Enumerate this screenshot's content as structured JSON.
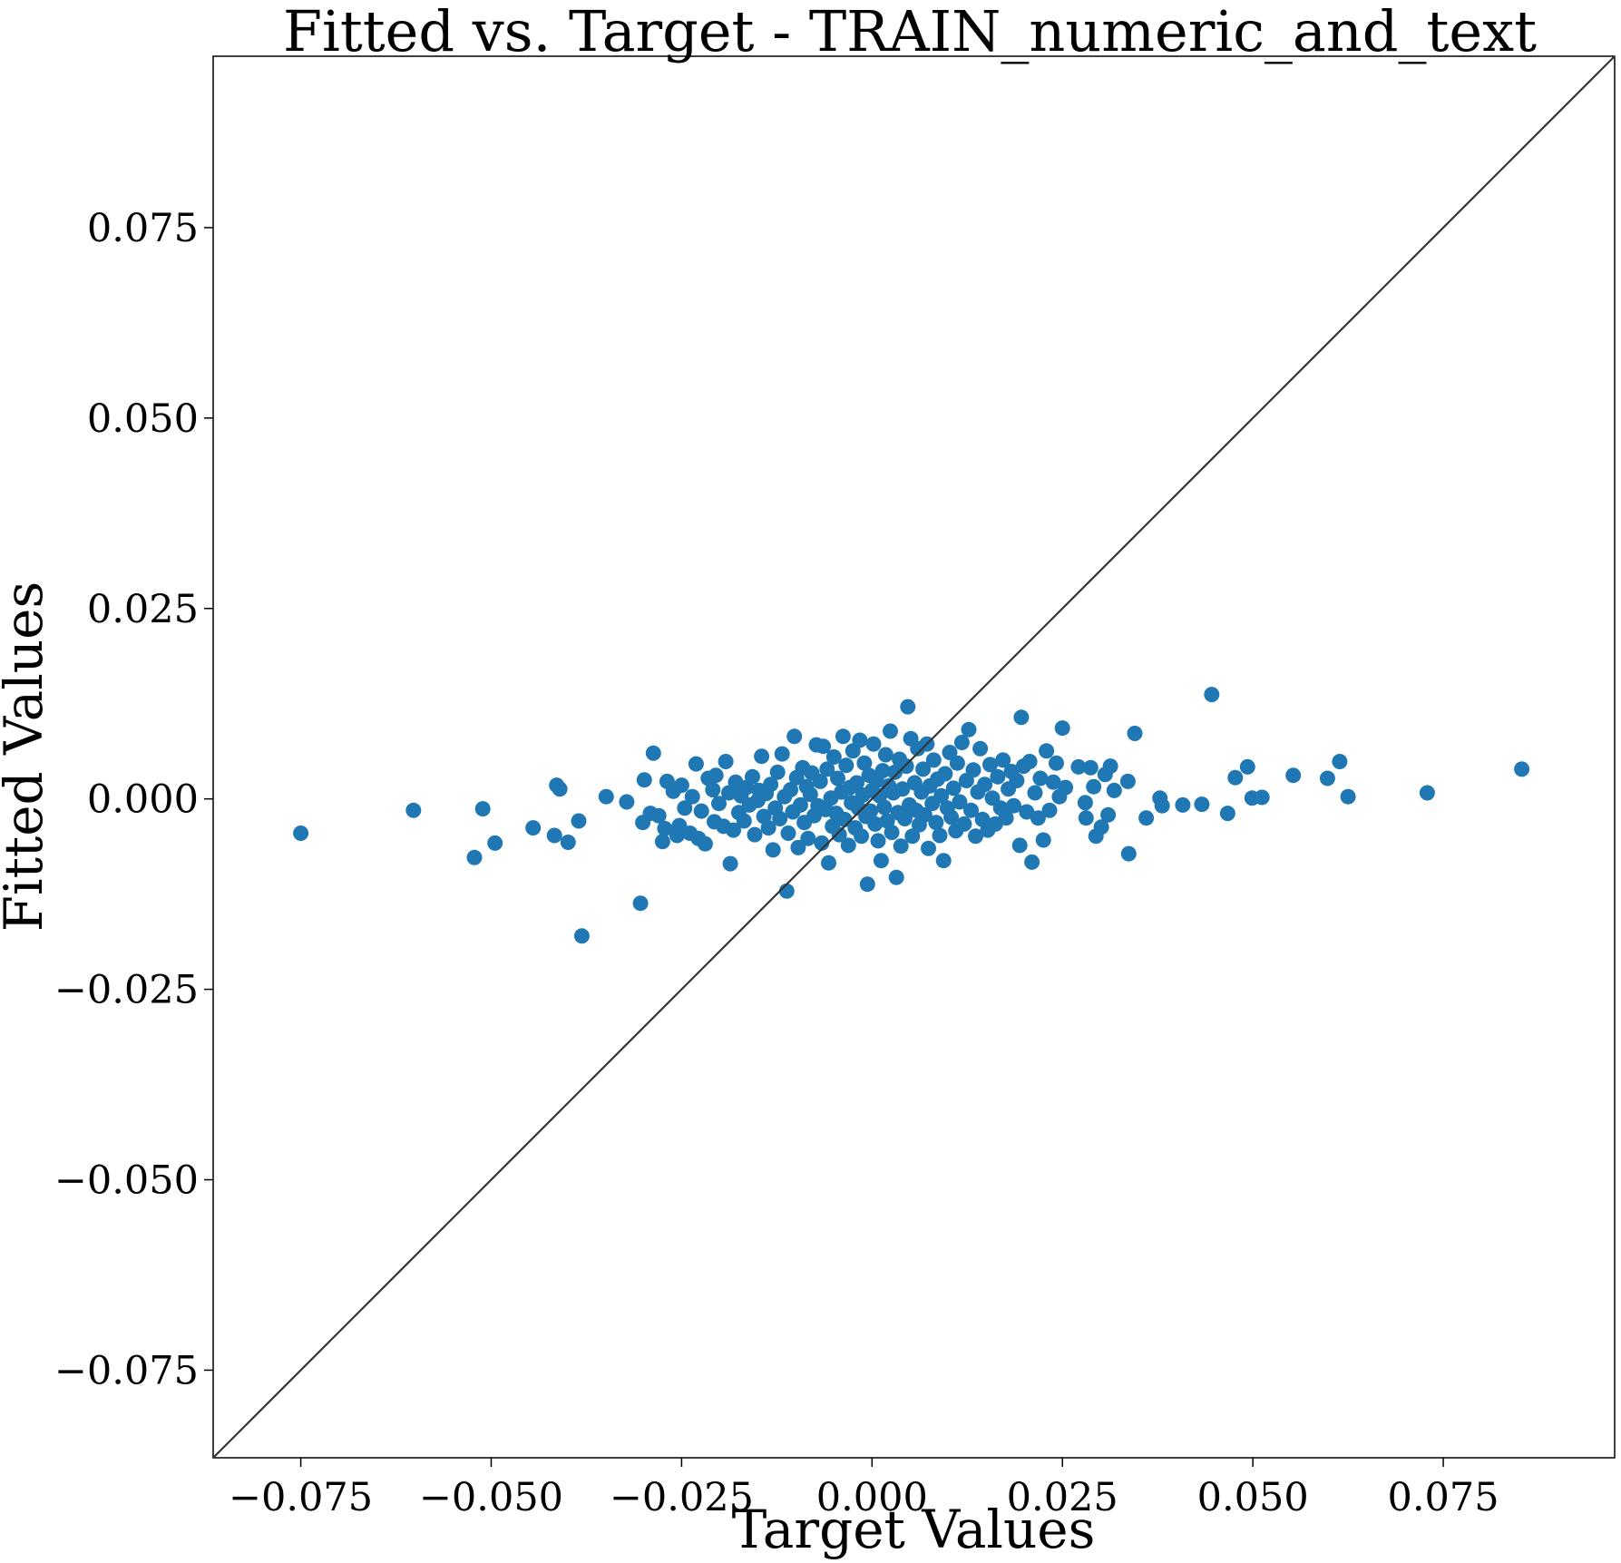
{
  "chart_data": {
    "type": "scatter",
    "title": "Fitted vs. Target - TRAIN_numeric_and_text",
    "xlabel": "Target Values",
    "ylabel": "Fitted Values",
    "xlim": [
      -0.0865,
      0.0975
    ],
    "ylim": [
      -0.0865,
      0.0975
    ],
    "xticks": [
      -0.075,
      -0.05,
      -0.025,
      0.0,
      0.025,
      0.05,
      0.075
    ],
    "yticks": [
      -0.075,
      -0.05,
      -0.025,
      0.0,
      0.025,
      0.05,
      0.075
    ],
    "xtick_labels": [
      "−0.075",
      "−0.050",
      "−0.025",
      "0.000",
      "0.025",
      "0.050",
      "0.075"
    ],
    "ytick_labels": [
      "−0.075",
      "−0.050",
      "−0.025",
      "0.000",
      "0.025",
      "0.050",
      "0.075"
    ],
    "grid": false,
    "reference_line": "y = x",
    "colors": {
      "points": "#1f77b4",
      "line": "#333333"
    },
    "points": [
      [
        -0.075,
        -0.0045
      ],
      [
        -0.0602,
        -0.0015
      ],
      [
        -0.0511,
        -0.0013
      ],
      [
        -0.0522,
        -0.0077
      ],
      [
        -0.0495,
        -0.0058
      ],
      [
        -0.0445,
        -0.0038
      ],
      [
        -0.0417,
        -0.0048
      ],
      [
        -0.0414,
        0.0018
      ],
      [
        -0.041,
        0.0013
      ],
      [
        -0.0399,
        -0.0057
      ],
      [
        -0.0385,
        -0.0029
      ],
      [
        -0.0381,
        -0.018
      ],
      [
        -0.0349,
        0.0003
      ],
      [
        -0.0322,
        -0.0004
      ],
      [
        -0.0304,
        -0.0137
      ],
      [
        -0.0301,
        -0.0031
      ],
      [
        -0.0299,
        0.0025
      ],
      [
        -0.0291,
        -0.0019
      ],
      [
        -0.0287,
        0.006
      ],
      [
        -0.028,
        -0.0022
      ],
      [
        -0.0275,
        -0.0056
      ],
      [
        -0.0272,
        -0.0039
      ],
      [
        -0.0269,
        0.0023
      ],
      [
        -0.0261,
        0.001
      ],
      [
        -0.0256,
        -0.0048
      ],
      [
        -0.0253,
        -0.0035
      ],
      [
        -0.025,
        0.0018
      ],
      [
        -0.0246,
        -0.0012
      ],
      [
        -0.0239,
        -0.0045
      ],
      [
        -0.0236,
        0.0003
      ],
      [
        -0.0231,
        0.0046
      ],
      [
        -0.0228,
        -0.0052
      ],
      [
        -0.0224,
        -0.0016
      ],
      [
        -0.0219,
        -0.0059
      ],
      [
        -0.0215,
        0.0027
      ],
      [
        -0.0209,
        0.0012
      ],
      [
        -0.0207,
        -0.003
      ],
      [
        -0.0205,
        0.0031
      ],
      [
        -0.0201,
        -0.0006
      ],
      [
        -0.0195,
        -0.0036
      ],
      [
        -0.0192,
        0.0049
      ],
      [
        -0.0188,
        0.0008
      ],
      [
        -0.0186,
        -0.0085
      ],
      [
        -0.0182,
        -0.0041
      ],
      [
        -0.0179,
        0.0022
      ],
      [
        -0.0175,
        -0.0018
      ],
      [
        -0.0172,
        0.0004
      ],
      [
        -0.0168,
        -0.0029
      ],
      [
        -0.0165,
        0.0015
      ],
      [
        -0.0161,
        -0.0008
      ],
      [
        -0.0157,
        0.0029
      ],
      [
        -0.0154,
        -0.0047
      ],
      [
        -0.015,
        -0.0002
      ],
      [
        -0.0148,
        0.0011
      ],
      [
        -0.0145,
        0.0056
      ],
      [
        -0.0142,
        -0.0023
      ],
      [
        -0.0139,
        0.0007
      ],
      [
        -0.0136,
        -0.0038
      ],
      [
        -0.0133,
        0.0019
      ],
      [
        -0.013,
        -0.0067
      ],
      [
        -0.0127,
        -0.0012
      ],
      [
        -0.0124,
        0.0035
      ],
      [
        -0.0121,
        -0.0026
      ],
      [
        -0.0118,
        0.0059
      ],
      [
        -0.0115,
        0.0003
      ],
      [
        -0.0112,
        -0.0121
      ],
      [
        -0.011,
        -0.0045
      ],
      [
        -0.0107,
        0.0012
      ],
      [
        -0.0104,
        -0.0017
      ],
      [
        -0.0102,
        0.0082
      ],
      [
        -0.0099,
        0.0028
      ],
      [
        -0.0097,
        -0.0064
      ],
      [
        -0.0094,
        -0.0008
      ],
      [
        -0.0091,
        0.0041
      ],
      [
        -0.0089,
        -0.0031
      ],
      [
        -0.0086,
        0.0016
      ],
      [
        -0.0084,
        -0.0052
      ],
      [
        -0.0081,
        0.0006
      ],
      [
        -0.0079,
        0.0034
      ],
      [
        -0.0076,
        -0.0022
      ],
      [
        -0.0073,
        0.0071
      ],
      [
        -0.0071,
        -0.0009
      ],
      [
        -0.0068,
        0.0023
      ],
      [
        -0.0066,
        -0.0058
      ],
      [
        -0.0064,
        0.0069
      ],
      [
        -0.0061,
        -0.0014
      ],
      [
        -0.0059,
        0.0039
      ],
      [
        -0.0057,
        -0.0084
      ],
      [
        -0.0054,
        0.0001
      ],
      [
        -0.0052,
        -0.0036
      ],
      [
        -0.005,
        0.0055
      ],
      [
        -0.0047,
        -0.0019
      ],
      [
        -0.0045,
        0.0027
      ],
      [
        -0.0043,
        -0.0047
      ],
      [
        -0.004,
        0.0009
      ],
      [
        -0.0038,
        0.0082
      ],
      [
        -0.0036,
        -0.0027
      ],
      [
        -0.0034,
        0.0044
      ],
      [
        -0.0031,
        -0.0061
      ],
      [
        -0.0029,
        0.0015
      ],
      [
        -0.0027,
        -0.0005
      ],
      [
        -0.0025,
        0.0063
      ],
      [
        -0.0022,
        -0.0038
      ],
      [
        -0.002,
        0.0021
      ],
      [
        -0.0018,
        -0.0012
      ],
      [
        -0.0016,
        0.0077
      ],
      [
        -0.0014,
        -0.0049
      ],
      [
        -0.0012,
        0.0005
      ],
      [
        -0.001,
        0.0047
      ],
      [
        -0.0008,
        -0.0023
      ],
      [
        -0.0006,
        -0.0112
      ],
      [
        -0.0004,
        0.0031
      ],
      [
        -0.0002,
        -0.0016
      ],
      [
        0.0,
        0.0011
      ],
      [
        0.0002,
        0.0072
      ],
      [
        0.0004,
        -0.0033
      ],
      [
        0.0006,
        0.0024
      ],
      [
        0.0008,
        -0.0055
      ],
      [
        0.001,
        0.0004
      ],
      [
        0.0012,
        -0.0081
      ],
      [
        0.0014,
        0.0037
      ],
      [
        0.0016,
        -0.0011
      ],
      [
        0.0018,
        0.0058
      ],
      [
        0.002,
        -0.0029
      ],
      [
        0.0022,
        0.0017
      ],
      [
        0.0024,
        0.0089
      ],
      [
        0.0026,
        -0.0044
      ],
      [
        0.0028,
        0.0008
      ],
      [
        0.003,
        0.0035
      ],
      [
        0.0032,
        -0.0103
      ],
      [
        0.0034,
        -0.0018
      ],
      [
        0.0036,
        0.0052
      ],
      [
        0.0038,
        -0.0062
      ],
      [
        0.004,
        0.0013
      ],
      [
        0.0043,
        -0.0026
      ],
      [
        0.0045,
        0.0043
      ],
      [
        0.0047,
        0.0121
      ],
      [
        0.0049,
        -0.0008
      ],
      [
        0.0051,
        0.0079
      ],
      [
        0.0053,
        -0.0049
      ],
      [
        0.0056,
        0.0021
      ],
      [
        0.0058,
        -0.0015
      ],
      [
        0.006,
        0.0066
      ],
      [
        0.0062,
        -0.0034
      ],
      [
        0.0065,
        0.0009
      ],
      [
        0.0067,
        0.0039
      ],
      [
        0.0069,
        -0.0021
      ],
      [
        0.0072,
        0.0072
      ],
      [
        0.0074,
        -0.0065
      ],
      [
        0.0076,
        0.0017
      ],
      [
        0.0079,
        -0.0006
      ],
      [
        0.0081,
        0.0051
      ],
      [
        0.0084,
        -0.0031
      ],
      [
        0.0086,
        0.0026
      ],
      [
        0.0089,
        -0.0048
      ],
      [
        0.0091,
        0.0004
      ],
      [
        0.0094,
        -0.0081
      ],
      [
        0.0096,
        0.0033
      ],
      [
        0.0099,
        -0.0012
      ],
      [
        0.0102,
        0.0061
      ],
      [
        0.0104,
        -0.0024
      ],
      [
        0.0107,
        0.0014
      ],
      [
        0.011,
        -0.0042
      ],
      [
        0.0112,
        0.0047
      ],
      [
        0.0115,
        -0.0004
      ],
      [
        0.0118,
        0.0074
      ],
      [
        0.0121,
        -0.0033
      ],
      [
        0.0124,
        0.0024
      ],
      [
        0.0127,
        0.0091
      ],
      [
        0.013,
        -0.0015
      ],
      [
        0.0133,
        0.0038
      ],
      [
        0.0136,
        -0.0049
      ],
      [
        0.0139,
        0.0009
      ],
      [
        0.0142,
        0.0066
      ],
      [
        0.0145,
        -0.0027
      ],
      [
        0.0148,
        0.0019
      ],
      [
        0.0152,
        -0.0041
      ],
      [
        0.0155,
        0.0045
      ],
      [
        0.0158,
        0.0001
      ],
      [
        0.0162,
        -0.0033
      ],
      [
        0.0165,
        0.0029
      ],
      [
        0.0169,
        -0.0012
      ],
      [
        0.0172,
        0.0051
      ],
      [
        0.0176,
        -0.0025
      ],
      [
        0.0179,
        0.0013
      ],
      [
        0.0183,
        0.0036
      ],
      [
        0.0186,
        -0.0009
      ],
      [
        0.019,
        0.0024
      ],
      [
        0.0194,
        -0.0061
      ],
      [
        0.0196,
        0.0107
      ],
      [
        0.0199,
        0.0043
      ],
      [
        0.0203,
        -0.0017
      ],
      [
        0.0207,
        0.0049
      ],
      [
        0.021,
        -0.0083
      ],
      [
        0.0214,
        0.0008
      ],
      [
        0.0218,
        -0.0025
      ],
      [
        0.0221,
        0.0027
      ],
      [
        0.0225,
        -0.0054
      ],
      [
        0.0229,
        0.0063
      ],
      [
        0.0233,
        -0.0015
      ],
      [
        0.0238,
        0.0022
      ],
      [
        0.0242,
        0.0047
      ],
      [
        0.0246,
        0.0003
      ],
      [
        0.025,
        0.0093
      ],
      [
        0.0254,
        0.0015
      ],
      [
        0.0271,
        0.0042
      ],
      [
        0.028,
        -0.0005
      ],
      [
        0.0281,
        -0.0025
      ],
      [
        0.0287,
        0.0041
      ],
      [
        0.0291,
        0.0016
      ],
      [
        0.0294,
        -0.0049
      ],
      [
        0.0301,
        -0.0037
      ],
      [
        0.0306,
        0.0032
      ],
      [
        0.031,
        -0.0021
      ],
      [
        0.0313,
        0.0043
      ],
      [
        0.0318,
        0.0011
      ],
      [
        0.0336,
        0.0023
      ],
      [
        0.0337,
        -0.0072
      ],
      [
        0.0345,
        0.0086
      ],
      [
        0.036,
        -0.0025
      ],
      [
        0.0378,
        0.0001
      ],
      [
        0.0381,
        -0.0009
      ],
      [
        0.0408,
        -0.0008
      ],
      [
        0.0433,
        -0.0007
      ],
      [
        0.0446,
        0.0137
      ],
      [
        0.0467,
        -0.0019
      ],
      [
        0.0477,
        0.0028
      ],
      [
        0.0493,
        0.0042
      ],
      [
        0.0499,
        0.0001
      ],
      [
        0.0512,
        0.0002
      ],
      [
        0.0553,
        0.0031
      ],
      [
        0.0598,
        0.0027
      ],
      [
        0.0614,
        0.0049
      ],
      [
        0.0625,
        0.0003
      ],
      [
        0.0729,
        0.0008
      ],
      [
        0.0853,
        0.0039
      ]
    ]
  }
}
